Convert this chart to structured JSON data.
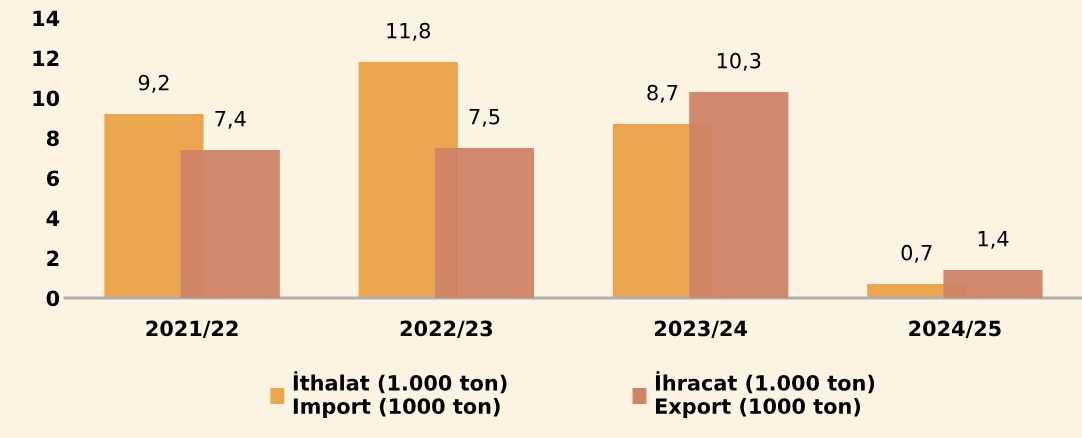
{
  "chart_data": {
    "type": "bar",
    "categories": [
      "2021/22",
      "2022/23",
      "2023/24",
      "2024/25"
    ],
    "series": [
      {
        "name": "İthalat (1.000 ton)\nImport (1000 ton)",
        "color": "#eaa54f",
        "values": [
          9.2,
          11.8,
          8.7,
          0.7
        ],
        "value_labels": [
          "9,2",
          "11,8",
          "8,7",
          "0,7"
        ]
      },
      {
        "name": "İhracat (1.000 ton)\nExport (1000 ton)",
        "color": "#cf8466",
        "values": [
          7.4,
          7.5,
          10.3,
          1.4
        ],
        "value_labels": [
          "7,4",
          "7,5",
          "10,3",
          "1,4"
        ]
      }
    ],
    "ylim": [
      0,
      14
    ],
    "yticks": [
      0,
      2,
      4,
      6,
      8,
      10,
      12,
      14
    ],
    "grid": false,
    "legend": "bottom"
  }
}
